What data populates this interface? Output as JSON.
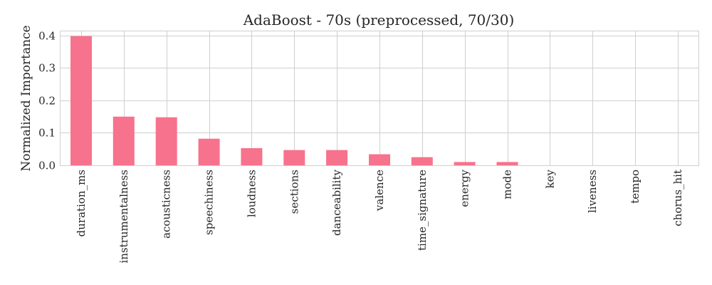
{
  "chart_data": {
    "type": "bar",
    "title": "AdaBoost - 70s (preprocessed, 70/30)",
    "xlabel": "",
    "ylabel": "Normalized Importance",
    "categories": [
      "duration_ms",
      "instrumentalness",
      "acousticness",
      "speechiness",
      "loudness",
      "sections",
      "danceability",
      "valence",
      "time_signature",
      "energy",
      "mode",
      "key",
      "liveness",
      "tempo",
      "chorus_hit"
    ],
    "values": [
      0.398,
      0.15,
      0.148,
      0.082,
      0.053,
      0.047,
      0.047,
      0.034,
      0.025,
      0.01,
      0.01,
      0.0,
      0.0,
      0.0,
      0.0
    ],
    "ylim": [
      0,
      0.415
    ],
    "yticks": [
      0.0,
      0.1,
      0.2,
      0.3,
      0.4
    ],
    "ytick_labels": [
      "0.0",
      "0.1",
      "0.2",
      "0.3",
      "0.4"
    ],
    "grid": true,
    "bar_color": "#f7728c"
  }
}
